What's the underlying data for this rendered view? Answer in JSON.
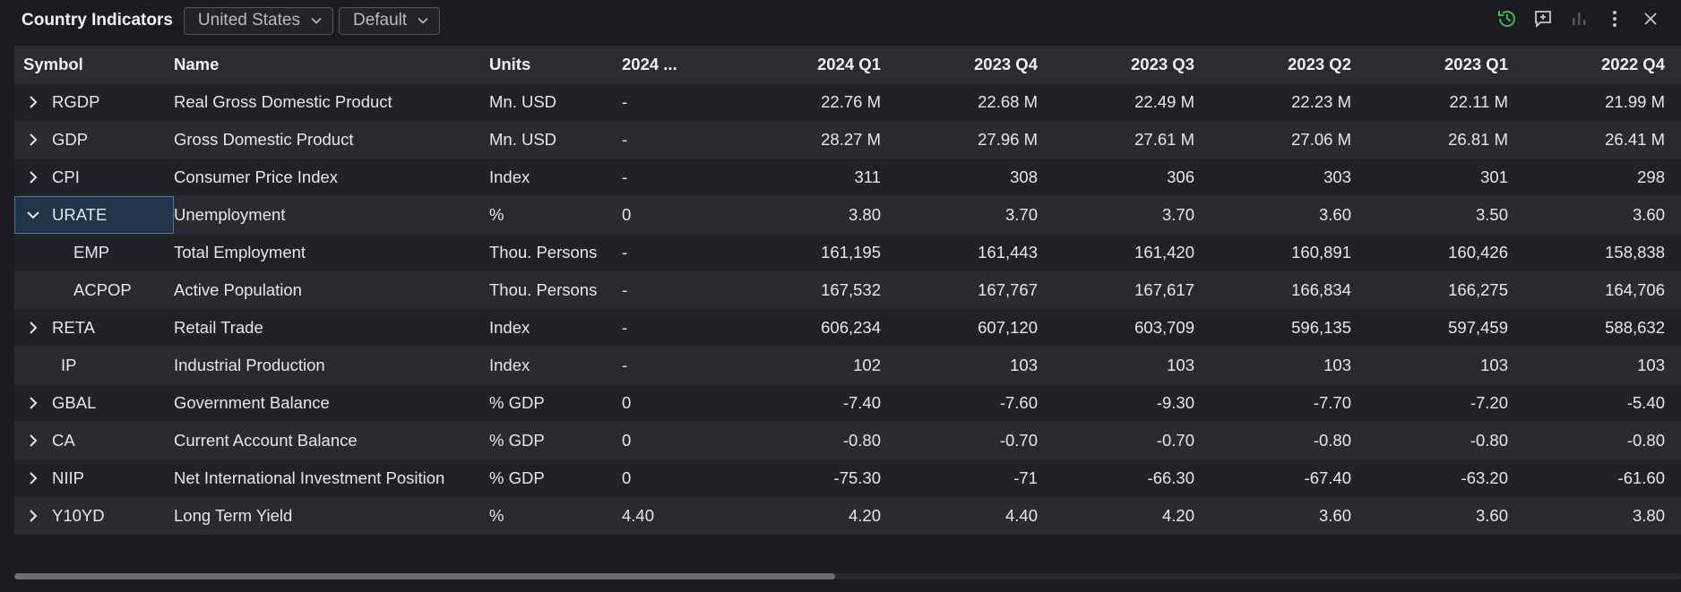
{
  "header": {
    "title": "Country Indicators",
    "country_select": "United States",
    "layout_select": "Default",
    "icons": [
      "history-icon",
      "add-comment-icon",
      "bar-chart-icon",
      "more-vertical-icon",
      "close-icon"
    ],
    "accent_color": "#3fb950"
  },
  "table": {
    "columns": [
      "Symbol",
      "Name",
      "Units",
      "2024 ...",
      "2024 Q1",
      "2023 Q4",
      "2023 Q3",
      "2023 Q2",
      "2023 Q1",
      "2022 Q4"
    ],
    "rows": [
      {
        "symbol": "RGDP",
        "name": "Real Gross Domestic Product",
        "units": "Mn. USD",
        "cur": "-",
        "v": [
          "22.76 M",
          "22.68 M",
          "22.49 M",
          "22.23 M",
          "22.11 M",
          "21.99 M"
        ]
      },
      {
        "symbol": "GDP",
        "name": "Gross Domestic Product",
        "units": "Mn. USD",
        "cur": "-",
        "v": [
          "28.27 M",
          "27.96 M",
          "27.61 M",
          "27.06 M",
          "26.81 M",
          "26.41 M"
        ]
      },
      {
        "symbol": "CPI",
        "name": "Consumer Price Index",
        "units": "Index",
        "cur": "-",
        "v": [
          "311",
          "308",
          "306",
          "303",
          "301",
          "298"
        ]
      },
      {
        "symbol": "URATE",
        "name": "Unemployment",
        "units": "%",
        "cur": "0",
        "v": [
          "3.80",
          "3.70",
          "3.70",
          "3.60",
          "3.50",
          "3.60"
        ]
      },
      {
        "symbol": "EMP",
        "name": "Total Employment",
        "units": "Thou. Persons",
        "cur": "-",
        "v": [
          "161,195",
          "161,443",
          "161,420",
          "160,891",
          "160,426",
          "158,838"
        ]
      },
      {
        "symbol": "ACPOP",
        "name": "Active Population",
        "units": "Thou. Persons",
        "cur": "-",
        "v": [
          "167,532",
          "167,767",
          "167,617",
          "166,834",
          "166,275",
          "164,706"
        ]
      },
      {
        "symbol": "RETA",
        "name": "Retail Trade",
        "units": "Index",
        "cur": "-",
        "v": [
          "606,234",
          "607,120",
          "603,709",
          "596,135",
          "597,459",
          "588,632"
        ]
      },
      {
        "symbol": "IP",
        "name": "Industrial Production",
        "units": "Index",
        "cur": "-",
        "v": [
          "102",
          "103",
          "103",
          "103",
          "103",
          "103"
        ]
      },
      {
        "symbol": "GBAL",
        "name": "Government Balance",
        "units": "% GDP",
        "cur": "0",
        "v": [
          "-7.40",
          "-7.60",
          "-9.30",
          "-7.70",
          "-7.20",
          "-5.40"
        ]
      },
      {
        "symbol": "CA",
        "name": "Current Account Balance",
        "units": "% GDP",
        "cur": "0",
        "v": [
          "-0.80",
          "-0.70",
          "-0.70",
          "-0.80",
          "-0.80",
          "-0.80"
        ]
      },
      {
        "symbol": "NIIP",
        "name": "Net International Investment Position",
        "units": "% GDP",
        "cur": "0",
        "v": [
          "-75.30",
          "-71",
          "-66.30",
          "-67.40",
          "-63.20",
          "-61.60"
        ]
      },
      {
        "symbol": "Y10YD",
        "name": "Long Term Yield",
        "units": "%",
        "cur": "4.40",
        "v": [
          "4.20",
          "4.40",
          "4.20",
          "3.60",
          "3.60",
          "3.80"
        ]
      }
    ]
  }
}
